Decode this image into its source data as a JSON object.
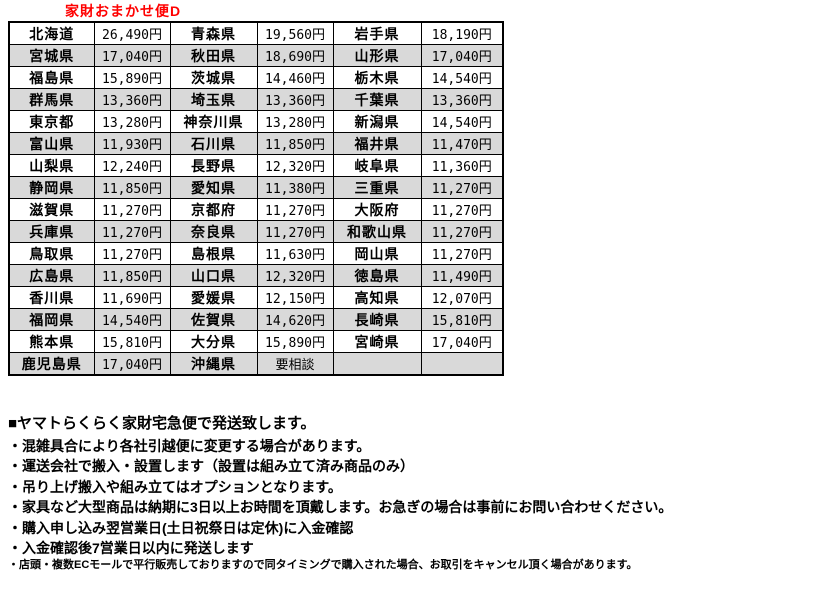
{
  "title": "家財おまかせ便D",
  "colors": {
    "title_red": "#ff0000",
    "row_shade_gray": "#d9d9d9",
    "table_border": "#000000"
  },
  "shipping_table": {
    "columns_per_row": [
      "prefecture",
      "price",
      "prefecture",
      "price",
      "prefecture",
      "price"
    ],
    "rows": [
      [
        "北海道",
        "26,490円",
        "青森県",
        "19,560円",
        "岩手県",
        "18,190円"
      ],
      [
        "宮城県",
        "17,040円",
        "秋田県",
        "18,690円",
        "山形県",
        "17,040円"
      ],
      [
        "福島県",
        "15,890円",
        "茨城県",
        "14,460円",
        "栃木県",
        "14,540円"
      ],
      [
        "群馬県",
        "13,360円",
        "埼玉県",
        "13,360円",
        "千葉県",
        "13,360円"
      ],
      [
        "東京都",
        "13,280円",
        "神奈川県",
        "13,280円",
        "新潟県",
        "14,540円"
      ],
      [
        "富山県",
        "11,930円",
        "石川県",
        "11,850円",
        "福井県",
        "11,470円"
      ],
      [
        "山梨県",
        "12,240円",
        "長野県",
        "12,320円",
        "岐阜県",
        "11,360円"
      ],
      [
        "静岡県",
        "11,850円",
        "愛知県",
        "11,380円",
        "三重県",
        "11,270円"
      ],
      [
        "滋賀県",
        "11,270円",
        "京都府",
        "11,270円",
        "大阪府",
        "11,270円"
      ],
      [
        "兵庫県",
        "11,270円",
        "奈良県",
        "11,270円",
        "和歌山県",
        "11,270円"
      ],
      [
        "鳥取県",
        "11,270円",
        "島根県",
        "11,630円",
        "岡山県",
        "11,270円"
      ],
      [
        "広島県",
        "11,850円",
        "山口県",
        "12,320円",
        "徳島県",
        "11,490円"
      ],
      [
        "香川県",
        "11,690円",
        "愛媛県",
        "12,150円",
        "高知県",
        "12,070円"
      ],
      [
        "福岡県",
        "14,540円",
        "佐賀県",
        "14,620円",
        "長崎県",
        "15,810円"
      ],
      [
        "熊本県",
        "15,810円",
        "大分県",
        "15,890円",
        "宮崎県",
        "17,040円"
      ],
      [
        "鹿児島県",
        "17,040円",
        "沖縄県",
        "要相談",
        "",
        ""
      ]
    ]
  },
  "notes": {
    "heading": "■ヤマトらくらく家財宅急便で発送致します。",
    "bullets": [
      "・混雑具合により各社引越便に変更する場合があります。",
      "・運送会社で搬入・設置します（設置は組み立て済み商品のみ）",
      "・吊り上げ搬入や組み立てはオプションとなります。",
      "・家具など大型商品は納期に3日以上お時間を頂戴します。お急ぎの場合は事前にお問い合わせください。",
      "・購入申し込み翌営業日(土日祝祭日は定休)に入金確認",
      "・入金確認後7営業日以内に発送します"
    ],
    "fine_print": "・店頭・複数ECモールで平行販売しておりますので同タイミングで購入された場合、お取引をキャンセル頂く場合があります。"
  }
}
